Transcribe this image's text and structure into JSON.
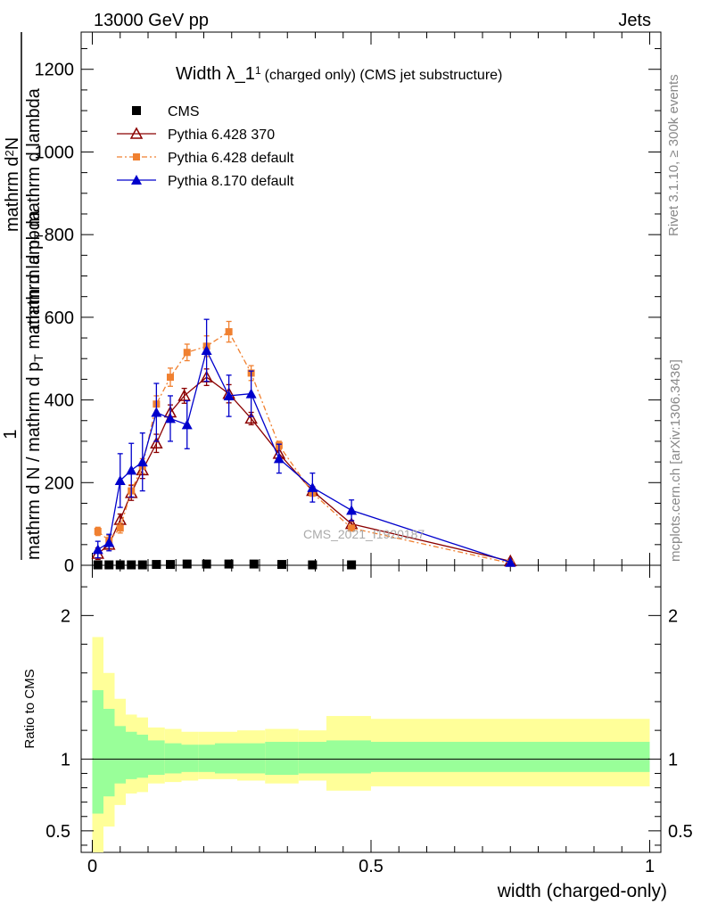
{
  "header": {
    "left": "13000 GeV pp",
    "right": "Jets"
  },
  "side": {
    "rivet": "Rivet 3.1.10, ≥ 300k events",
    "mcplots": "mcplots.cern.ch [arXiv:1306.3436]"
  },
  "chart_data": {
    "type": "scatter",
    "title_main": "Width λ_1",
    "title_sup": "1",
    "title_rest": "(charged only) (CMS jet substructure)",
    "watermark": "CMS_2021_I1920187",
    "xlabel": "width (charged-only)",
    "ylabel_top": {
      "numerator": "1",
      "denominator_main": "mathrm d N / mathrm d p",
      "denominator_sub": "T",
      "denominator_end": " mathrm d lambda",
      "factor_num": "mathrm d",
      "factor_num_sup": "2",
      "factor_num_end": "N",
      "factor_den": "mathrm d p",
      "factor_den_sub": "T",
      "factor_den_end": " mathrm d lambda"
    },
    "ylabel_ratio": "Ratio to CMS",
    "xlim": [
      -0.02,
      1.02
    ],
    "ylim": [
      0,
      1290
    ],
    "ratio_ylim": [
      0.35,
      2.35
    ],
    "x_ticks": [
      "0",
      "0.5",
      "1"
    ],
    "y_ticks": [
      "0",
      "200",
      "400",
      "600",
      "800",
      "1000",
      "1200"
    ],
    "ratio_ticks": [
      "0.5",
      "1",
      "2"
    ],
    "legend_position": "top-left",
    "series": [
      {
        "name": "CMS",
        "color": "#000000",
        "marker": "square",
        "x": [
          0.01,
          0.03,
          0.05,
          0.07,
          0.09,
          0.115,
          0.14,
          0.17,
          0.205,
          0.245,
          0.29,
          0.34,
          0.395,
          0.465
        ],
        "y": [
          1,
          1,
          1,
          1,
          1,
          2,
          2,
          3,
          3,
          3,
          3,
          2,
          1,
          1
        ]
      },
      {
        "name": "Pythia 6.428 370",
        "color": "#8b0000",
        "marker": "triangle-open",
        "x": [
          0.01,
          0.03,
          0.05,
          0.07,
          0.09,
          0.115,
          0.14,
          0.165,
          0.205,
          0.245,
          0.285,
          0.335,
          0.395,
          0.465,
          0.75
        ],
        "y": [
          28,
          50,
          110,
          175,
          230,
          295,
          370,
          410,
          455,
          415,
          355,
          270,
          180,
          100,
          10
        ],
        "err": [
          14,
          10,
          14,
          18,
          20,
          22,
          18,
          18,
          20,
          22,
          15,
          12,
          10,
          8,
          2
        ]
      },
      {
        "name": "Pythia 6.428 default",
        "color": "#f08030",
        "marker": "square-small",
        "x": [
          0.01,
          0.03,
          0.05,
          0.07,
          0.09,
          0.115,
          0.14,
          0.17,
          0.205,
          0.245,
          0.285,
          0.335,
          0.395,
          0.465,
          0.75
        ],
        "y": [
          82,
          60,
          90,
          180,
          240,
          390,
          455,
          515,
          530,
          565,
          465,
          290,
          175,
          90,
          5
        ],
        "err": [
          10,
          12,
          12,
          15,
          18,
          20,
          22,
          20,
          25,
          25,
          18,
          10,
          8,
          6,
          2
        ]
      },
      {
        "name": "Pythia 8.170 default",
        "color": "#0000cc",
        "marker": "triangle",
        "x": [
          0.01,
          0.03,
          0.05,
          0.07,
          0.09,
          0.115,
          0.14,
          0.17,
          0.205,
          0.245,
          0.285,
          0.335,
          0.395,
          0.465,
          0.75
        ],
        "y": [
          38,
          55,
          205,
          230,
          250,
          370,
          355,
          340,
          520,
          410,
          415,
          258,
          188,
          133,
          7
        ],
        "err": [
          20,
          20,
          65,
          65,
          70,
          70,
          55,
          58,
          75,
          50,
          55,
          35,
          35,
          25,
          3
        ]
      }
    ],
    "ratio_bands": {
      "edges": [
        0.0,
        0.02,
        0.04,
        0.06,
        0.08,
        0.1,
        0.13,
        0.16,
        0.19,
        0.22,
        0.26,
        0.31,
        0.37,
        0.42,
        0.5,
        1.0
      ],
      "inner": [
        [
          0.62,
          1.48
        ],
        [
          0.74,
          1.35
        ],
        [
          0.83,
          1.23
        ],
        [
          0.86,
          1.19
        ],
        [
          0.87,
          1.17
        ],
        [
          0.89,
          1.13
        ],
        [
          0.9,
          1.11
        ],
        [
          0.91,
          1.1
        ],
        [
          0.91,
          1.1
        ],
        [
          0.9,
          1.11
        ],
        [
          0.9,
          1.11
        ],
        [
          0.89,
          1.12
        ],
        [
          0.9,
          1.12
        ],
        [
          0.9,
          1.13
        ],
        [
          0.91,
          1.12
        ]
      ],
      "outer": [
        [
          0.3,
          1.85
        ],
        [
          0.53,
          1.6
        ],
        [
          0.68,
          1.42
        ],
        [
          0.76,
          1.31
        ],
        [
          0.77,
          1.29
        ],
        [
          0.83,
          1.22
        ],
        [
          0.84,
          1.21
        ],
        [
          0.85,
          1.19
        ],
        [
          0.86,
          1.19
        ],
        [
          0.86,
          1.19
        ],
        [
          0.85,
          1.2
        ],
        [
          0.83,
          1.21
        ],
        [
          0.85,
          1.2
        ],
        [
          0.78,
          1.3
        ],
        [
          0.81,
          1.28
        ]
      ],
      "inner_color": "#99ff99",
      "outer_color": "#ffff99"
    }
  }
}
